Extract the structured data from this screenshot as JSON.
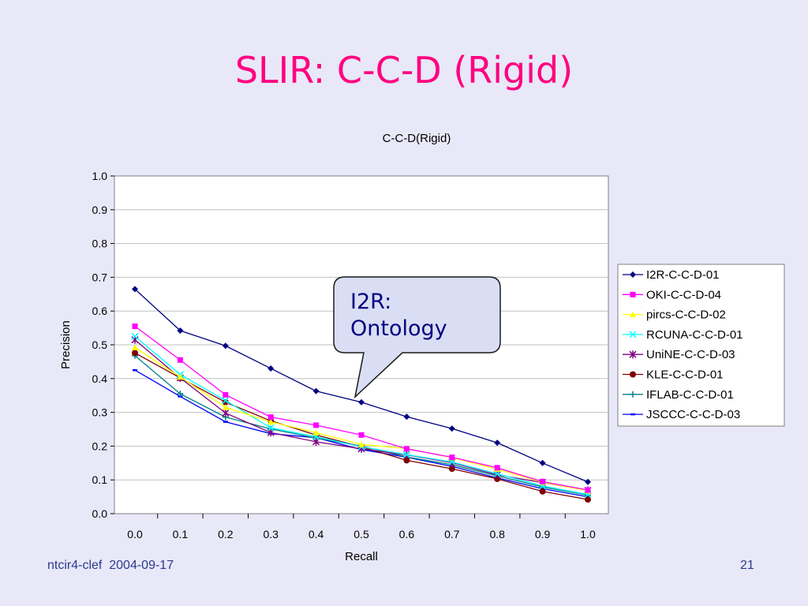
{
  "slide": {
    "title": "SLIR: C-C-D (Rigid)",
    "footer_source": "ntcir4-clef",
    "footer_date": "2004-09-17",
    "page_number": "21"
  },
  "callout": {
    "line1": "I2R:",
    "line2": "Ontology"
  },
  "chart_data": {
    "type": "line",
    "title": "C-C-D(Rigid)",
    "xlabel": "Recall",
    "ylabel": "Precision",
    "x": [
      0.0,
      0.1,
      0.2,
      0.3,
      0.4,
      0.5,
      0.6,
      0.7,
      0.8,
      0.9,
      1.0
    ],
    "x_tick_labels": [
      "0.0",
      "0.1",
      "0.2",
      "0.3",
      "0.4",
      "0.5",
      "0.6",
      "0.7",
      "0.8",
      "0.9",
      "1.0"
    ],
    "y_tick_labels": [
      "0.0",
      "0.1",
      "0.2",
      "0.3",
      "0.4",
      "0.5",
      "0.6",
      "0.7",
      "0.8",
      "0.9",
      "1.0"
    ],
    "xlim": [
      0,
      1
    ],
    "ylim": [
      0,
      1
    ],
    "grid": "horizontal",
    "legend_position": "right",
    "series": [
      {
        "name": "I2R-C-C-D-01",
        "color": "#000080",
        "marker": "diamond",
        "values": [
          0.665,
          0.542,
          0.497,
          0.43,
          0.363,
          0.33,
          0.287,
          0.252,
          0.21,
          0.15,
          0.094
        ]
      },
      {
        "name": "OKI-C-C-D-04",
        "color": "#FF00FF",
        "marker": "square",
        "values": [
          0.555,
          0.455,
          0.352,
          0.286,
          0.262,
          0.233,
          0.192,
          0.167,
          0.136,
          0.095,
          0.07
        ]
      },
      {
        "name": "pircs-C-C-D-02",
        "color": "#FFFF00",
        "marker": "triangle",
        "values": [
          0.492,
          0.405,
          0.315,
          0.272,
          0.24,
          0.205,
          0.193,
          0.166,
          0.132,
          0.093,
          0.068
        ]
      },
      {
        "name": "RCUNA-C-C-D-01",
        "color": "#00FFFF",
        "marker": "x",
        "values": [
          0.525,
          0.412,
          0.335,
          0.254,
          0.228,
          0.198,
          0.175,
          0.153,
          0.118,
          0.082,
          0.057
        ]
      },
      {
        "name": "UniNE-C-C-D-03",
        "color": "#800080",
        "marker": "star",
        "values": [
          0.515,
          0.402,
          0.298,
          0.24,
          0.213,
          0.192,
          0.174,
          0.151,
          0.115,
          0.092,
          0.069
        ]
      },
      {
        "name": "KLE-C-C-D-01",
        "color": "#800000",
        "marker": "circle",
        "values": [
          0.476,
          0.402,
          0.33,
          0.275,
          0.233,
          0.198,
          0.158,
          0.133,
          0.103,
          0.066,
          0.042
        ]
      },
      {
        "name": "IFLAB-C-C-D-01",
        "color": "#008080",
        "marker": "plus",
        "values": [
          0.468,
          0.355,
          0.286,
          0.251,
          0.224,
          0.2,
          0.168,
          0.145,
          0.112,
          0.079,
          0.055
        ]
      },
      {
        "name": "JSCCC-C-C-D-03",
        "color": "#0000FF",
        "marker": "dash",
        "values": [
          0.425,
          0.347,
          0.272,
          0.237,
          0.225,
          0.19,
          0.167,
          0.14,
          0.106,
          0.074,
          0.05
        ]
      }
    ]
  }
}
